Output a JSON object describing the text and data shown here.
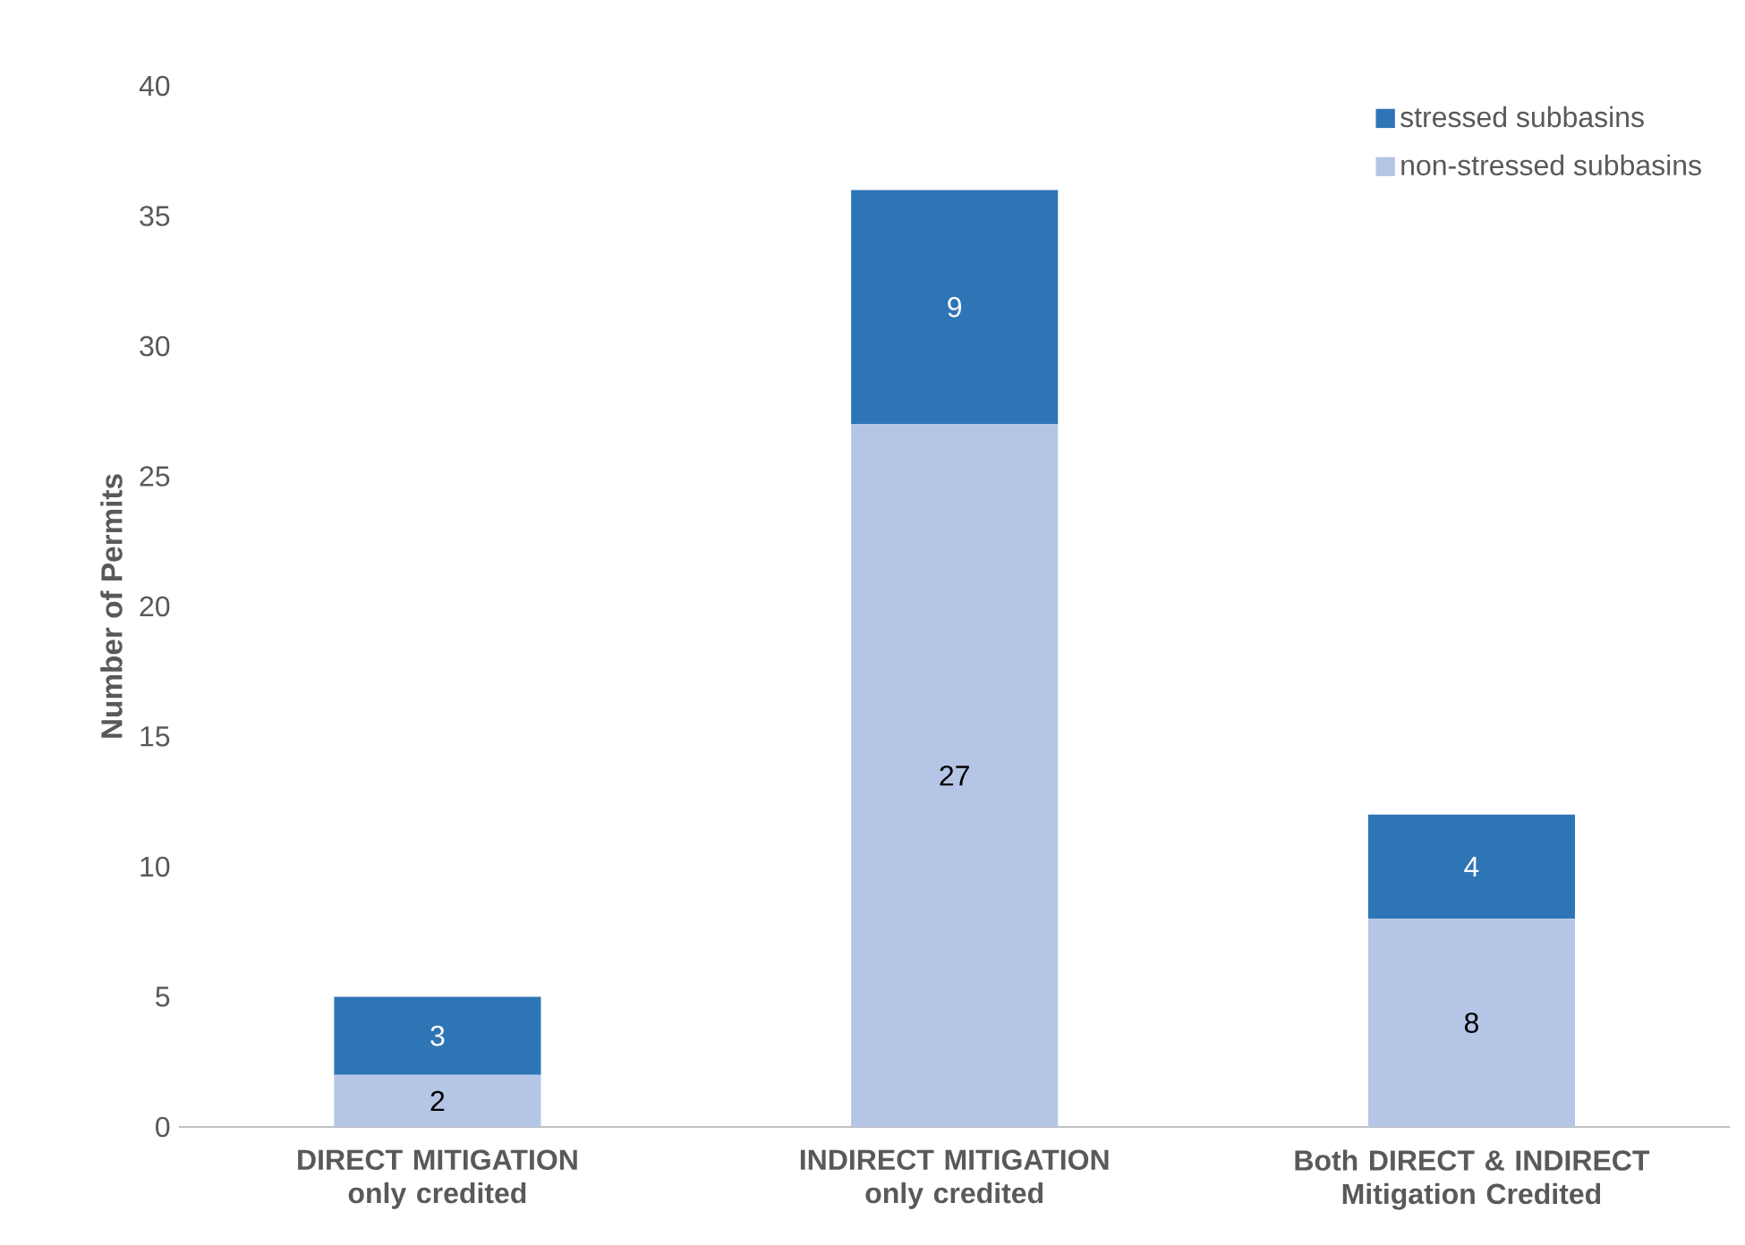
{
  "chart_data": {
    "type": "bar",
    "stacked": true,
    "ylabel": "Number of Permits",
    "categories": [
      "DIRECT MITIGATION only credited",
      "INDIRECT MITIGATION only credited",
      "Both DIRECT & INDIRECT Mitigation Credited"
    ],
    "series": [
      {
        "name": "non-stressed subbasins",
        "color": "#b4c5e6",
        "values": [
          2,
          27,
          8
        ]
      },
      {
        "name": "stressed subbasins",
        "color": "#2e75b6",
        "values": [
          3,
          9,
          4
        ]
      }
    ],
    "ylim": [
      0,
      40
    ],
    "yticks": [
      0,
      5,
      10,
      15,
      20,
      25,
      30,
      35,
      40
    ],
    "data_labels": true,
    "legend": "top right",
    "grid": false
  }
}
